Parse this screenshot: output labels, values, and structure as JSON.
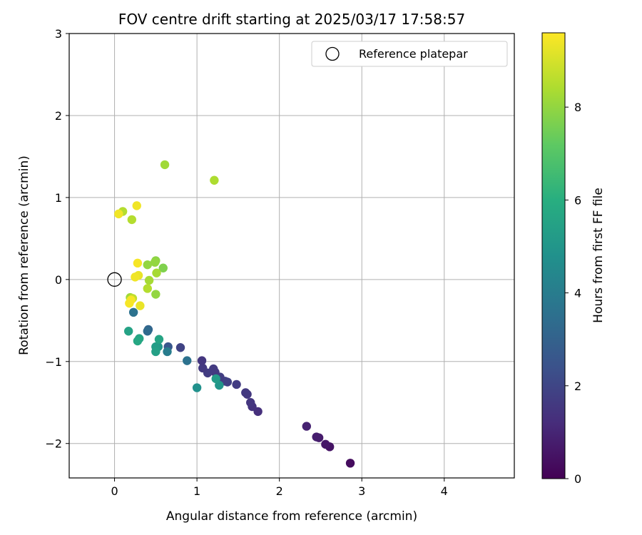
{
  "chart_data": {
    "type": "scatter",
    "title": "FOV centre drift starting at 2025/03/17 17:58:57",
    "xlabel": "Angular distance from reference (arcmin)",
    "ylabel": "Rotation from reference (arcmin)",
    "xlim": [
      -0.55,
      4.85
    ],
    "ylim": [
      -2.42,
      3.0
    ],
    "xticks": [
      0,
      1,
      2,
      3,
      4
    ],
    "yticks": [
      -2,
      -1,
      0,
      1,
      2,
      3
    ],
    "grid": true,
    "legend": {
      "location": "top-right",
      "entries": [
        "Reference platepar"
      ]
    },
    "reference_point": {
      "x": 0,
      "y": 0,
      "label": "Reference platepar"
    },
    "colorbar": {
      "label": "Hours from first FF file",
      "colormap": "viridis",
      "range": [
        0,
        9.6
      ],
      "ticks": [
        0,
        2,
        4,
        6,
        8
      ]
    },
    "series": [
      {
        "points": [
          {
            "x": 2.86,
            "y": -2.24,
            "c": 0.3
          },
          {
            "x": 2.61,
            "y": -2.04,
            "c": 0.5
          },
          {
            "x": 2.56,
            "y": -2.01,
            "c": 0.6
          },
          {
            "x": 2.48,
            "y": -1.93,
            "c": 0.7
          },
          {
            "x": 2.45,
            "y": -1.92,
            "c": 0.8
          },
          {
            "x": 2.33,
            "y": -1.79,
            "c": 0.9
          },
          {
            "x": 1.74,
            "y": -1.61,
            "c": 1.3
          },
          {
            "x": 1.67,
            "y": -1.55,
            "c": 1.4
          },
          {
            "x": 1.65,
            "y": -1.5,
            "c": 1.5
          },
          {
            "x": 1.61,
            "y": -1.4,
            "c": 1.55
          },
          {
            "x": 1.59,
            "y": -1.38,
            "c": 1.6
          },
          {
            "x": 1.48,
            "y": -1.28,
            "c": 1.7
          },
          {
            "x": 1.37,
            "y": -1.25,
            "c": 1.8
          },
          {
            "x": 1.34,
            "y": -1.24,
            "c": 1.85
          },
          {
            "x": 1.28,
            "y": -1.19,
            "c": 1.75
          },
          {
            "x": 1.22,
            "y": -1.13,
            "c": 1.6
          },
          {
            "x": 1.2,
            "y": -1.09,
            "c": 1.65
          },
          {
            "x": 1.13,
            "y": -1.14,
            "c": 1.7
          },
          {
            "x": 1.07,
            "y": -1.08,
            "c": 1.6
          },
          {
            "x": 1.06,
            "y": -0.99,
            "c": 1.5
          },
          {
            "x": 0.8,
            "y": -0.83,
            "c": 1.9
          },
          {
            "x": 0.65,
            "y": -0.82,
            "c": 2.6
          },
          {
            "x": 0.88,
            "y": -0.99,
            "c": 3.6
          },
          {
            "x": 0.64,
            "y": -0.88,
            "c": 4.0
          },
          {
            "x": 0.41,
            "y": -0.61,
            "c": 3.1
          },
          {
            "x": 0.4,
            "y": -0.63,
            "c": 3.3
          },
          {
            "x": 0.23,
            "y": -0.4,
            "c": 3.6
          },
          {
            "x": 1.0,
            "y": -1.32,
            "c": 4.8
          },
          {
            "x": 1.27,
            "y": -1.29,
            "c": 5.0
          },
          {
            "x": 1.23,
            "y": -1.21,
            "c": 5.2
          },
          {
            "x": 0.53,
            "y": -0.82,
            "c": 5.0
          },
          {
            "x": 0.5,
            "y": -0.82,
            "c": 5.3
          },
          {
            "x": 0.5,
            "y": -0.88,
            "c": 5.4
          },
          {
            "x": 0.54,
            "y": -0.73,
            "c": 5.6
          },
          {
            "x": 0.3,
            "y": -0.72,
            "c": 5.6
          },
          {
            "x": 0.28,
            "y": -0.75,
            "c": 5.7
          },
          {
            "x": 0.17,
            "y": -0.63,
            "c": 5.5
          },
          {
            "x": 0.61,
            "y": 1.4,
            "c": 8.2
          },
          {
            "x": 1.21,
            "y": 1.21,
            "c": 8.4
          },
          {
            "x": 0.1,
            "y": 0.83,
            "c": 8.5
          },
          {
            "x": 0.21,
            "y": 0.73,
            "c": 8.5
          },
          {
            "x": 0.5,
            "y": 0.23,
            "c": 7.9
          },
          {
            "x": 0.49,
            "y": 0.21,
            "c": 8.0
          },
          {
            "x": 0.59,
            "y": 0.14,
            "c": 7.7
          },
          {
            "x": 0.4,
            "y": 0.18,
            "c": 8.0
          },
          {
            "x": 0.51,
            "y": 0.08,
            "c": 8.3
          },
          {
            "x": 0.42,
            "y": -0.01,
            "c": 8.3
          },
          {
            "x": 0.4,
            "y": -0.11,
            "c": 8.5
          },
          {
            "x": 0.5,
            "y": -0.18,
            "c": 8.0
          },
          {
            "x": 0.19,
            "y": -0.22,
            "c": 8.2
          },
          {
            "x": 0.22,
            "y": -0.23,
            "c": 8.7
          },
          {
            "x": 0.05,
            "y": 0.8,
            "c": 9.4
          },
          {
            "x": 0.27,
            "y": 0.9,
            "c": 9.4
          },
          {
            "x": 0.28,
            "y": 0.2,
            "c": 9.5
          },
          {
            "x": 0.29,
            "y": 0.05,
            "c": 9.3
          },
          {
            "x": 0.25,
            "y": 0.03,
            "c": 9.4
          },
          {
            "x": 0.31,
            "y": -0.32,
            "c": 9.3
          },
          {
            "x": 0.18,
            "y": -0.29,
            "c": 9.5
          },
          {
            "x": 0.2,
            "y": -0.25,
            "c": 9.5
          }
        ]
      }
    ]
  }
}
